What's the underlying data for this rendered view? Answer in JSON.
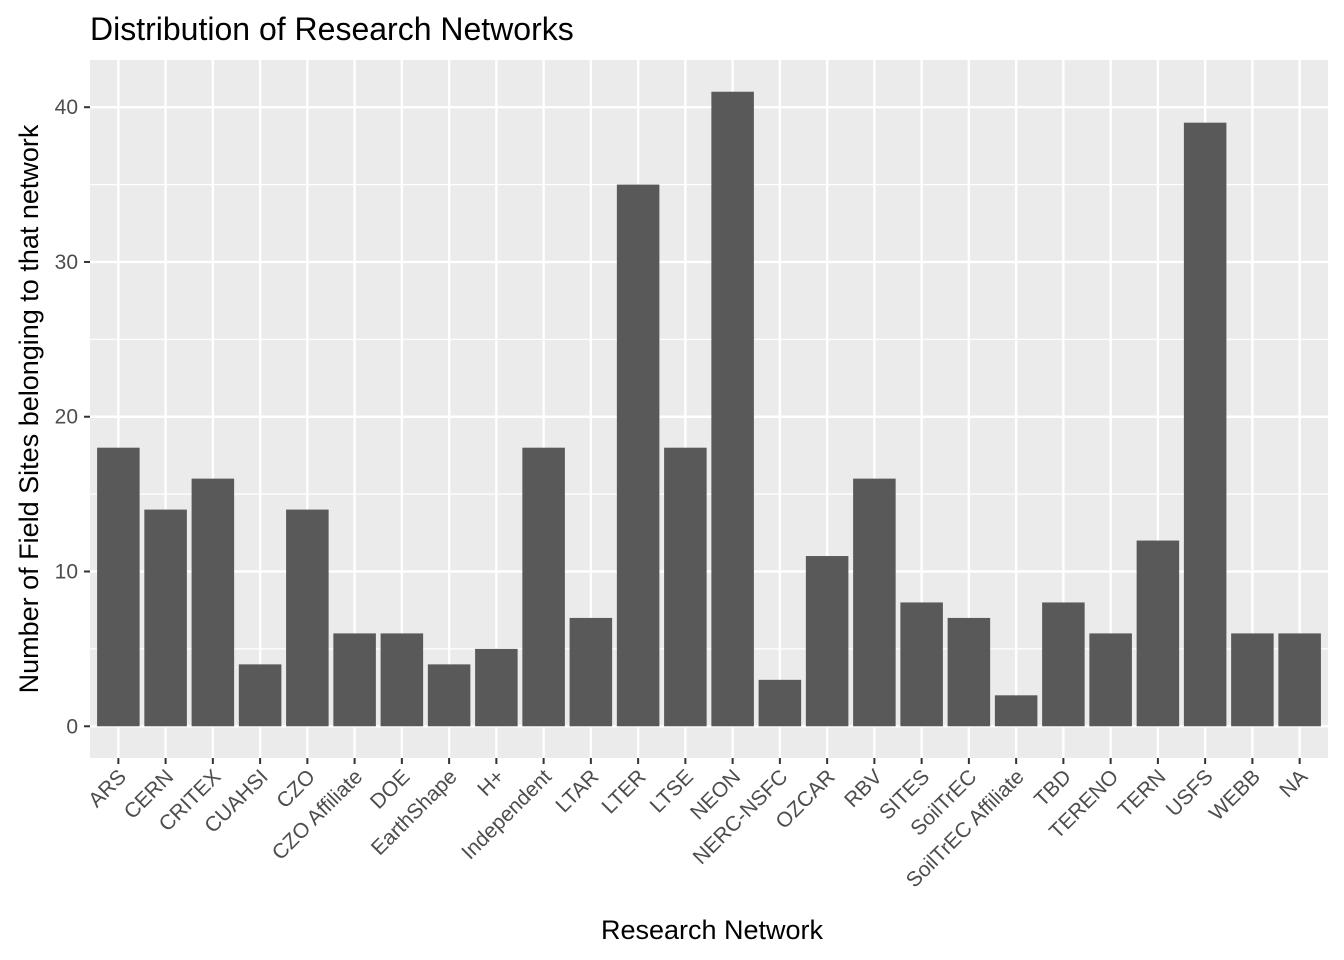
{
  "chart_data": {
    "type": "bar",
    "title": "Distribution of Research Networks",
    "xlabel": "Research Network",
    "ylabel": "Number of Field Sites belonging to that network",
    "categories": [
      "ARS",
      "CERN",
      "CRITEX",
      "CUAHSI",
      "CZO",
      "CZO Affiliate",
      "DOE",
      "EarthShape",
      "H+",
      "Independent",
      "LTAR",
      "LTER",
      "LTSE",
      "NEON",
      "NERC-NSFC",
      "OZCAR",
      "RBV",
      "SITES",
      "SoilTrEC",
      "SoilTrEC Affiliate",
      "TBD",
      "TERENO",
      "TERN",
      "USFS",
      "WEBB",
      "NA"
    ],
    "values": [
      18,
      14,
      16,
      4,
      14,
      6,
      6,
      4,
      5,
      18,
      7,
      35,
      18,
      41,
      3,
      11,
      16,
      8,
      7,
      2,
      8,
      6,
      12,
      39,
      6,
      6
    ],
    "ylim": [
      -2.05,
      43.05
    ],
    "yticks": [
      0,
      10,
      20,
      30,
      40
    ],
    "grid": true,
    "legend": "none",
    "colors": {
      "bar": "#595959",
      "panel": "#ebebeb",
      "grid_major": "#ffffff",
      "tick_text": "#4d4d4d"
    }
  }
}
